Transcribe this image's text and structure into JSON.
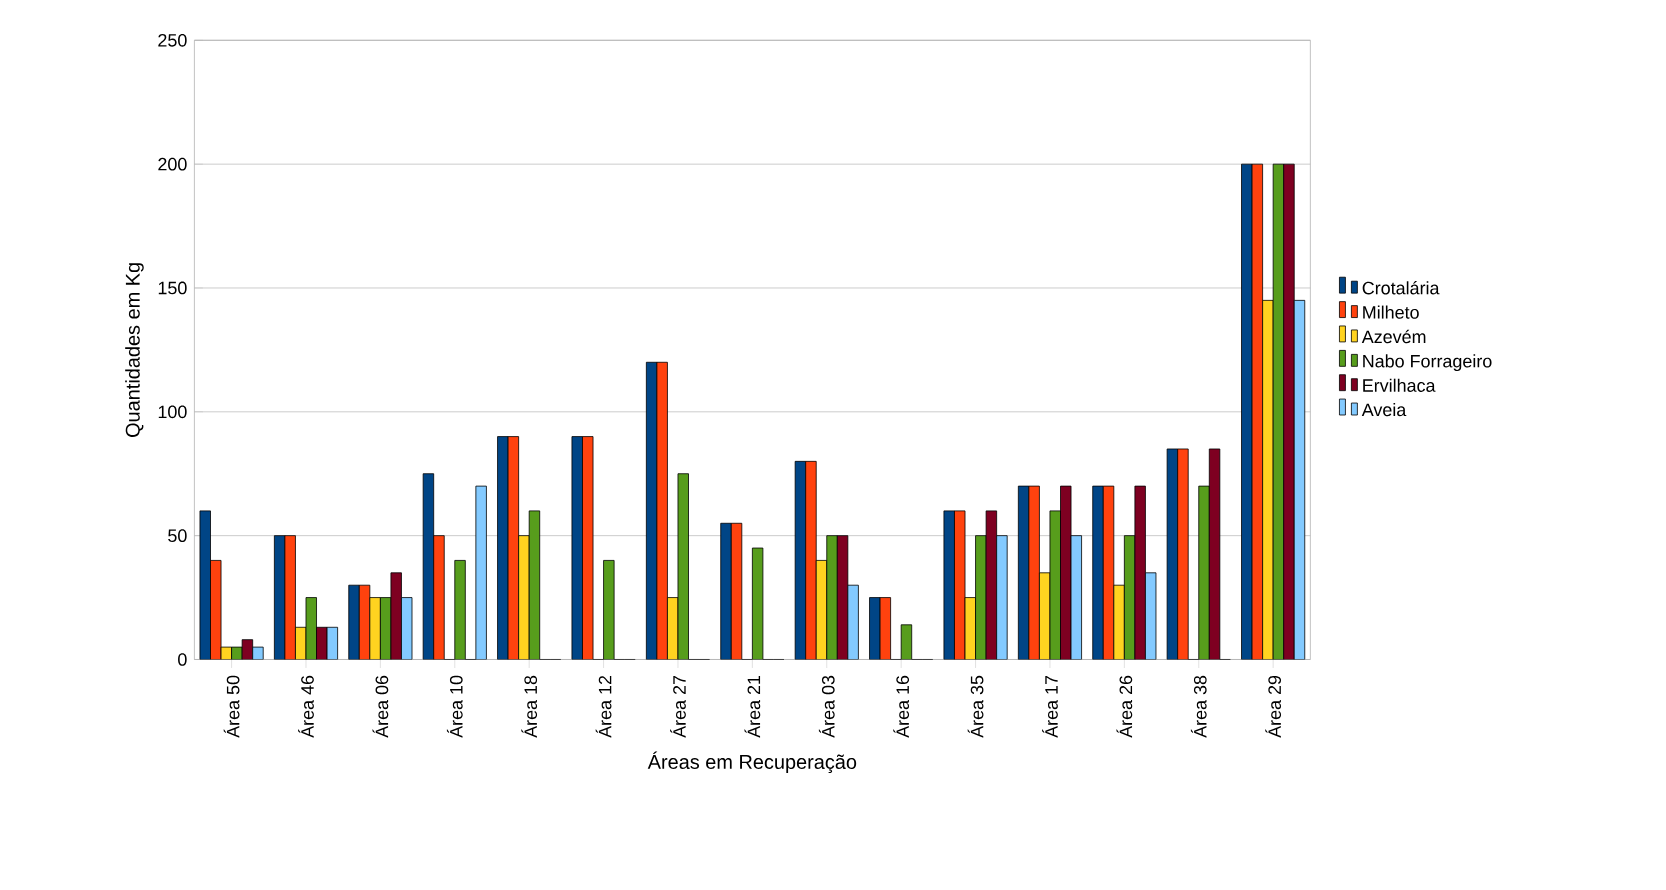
{
  "chart_data": {
    "type": "bar",
    "xlabel": "Áreas em Recuperação",
    "ylabel": "Quantidades em Kg",
    "categories": [
      "Área 50",
      "Área 46",
      "Área 06",
      "Área 10",
      "Área 18",
      "Área 12",
      "Área 27",
      "Área 21",
      "Área 03",
      "Área 16",
      "Área 35",
      "Área 17",
      "Área 26",
      "Área 38",
      "Área 29"
    ],
    "series": [
      {
        "name": "Crotalária",
        "color": "#004586",
        "values": [
          60,
          50,
          30,
          75,
          90,
          90,
          120,
          55,
          80,
          25,
          60,
          70,
          70,
          85,
          200
        ]
      },
      {
        "name": "Milheto",
        "color": "#ff420e",
        "values": [
          40,
          50,
          30,
          50,
          90,
          90,
          120,
          55,
          80,
          25,
          60,
          70,
          70,
          85,
          200
        ]
      },
      {
        "name": "Azevém",
        "color": "#ffd320",
        "values": [
          5,
          13,
          25,
          0,
          50,
          0,
          25,
          0,
          40,
          0,
          25,
          35,
          30,
          0,
          145
        ]
      },
      {
        "name": "Nabo Forrageiro",
        "color": "#579d1c",
        "values": [
          5,
          25,
          25,
          40,
          60,
          40,
          75,
          45,
          50,
          14,
          50,
          60,
          50,
          70,
          200
        ]
      },
      {
        "name": "Ervilhaca",
        "color": "#7e0021",
        "values": [
          8,
          13,
          35,
          0,
          0,
          0,
          0,
          0,
          50,
          0,
          60,
          70,
          70,
          85,
          200
        ]
      },
      {
        "name": "Aveia",
        "color": "#83caff",
        "values": [
          5,
          13,
          25,
          70,
          0,
          0,
          0,
          0,
          30,
          0,
          50,
          50,
          35,
          0,
          145
        ]
      }
    ],
    "ylim": [
      0,
      250
    ],
    "yticks": [
      0,
      50,
      100,
      150,
      200,
      250
    ],
    "grid": "y",
    "legend": "right"
  }
}
